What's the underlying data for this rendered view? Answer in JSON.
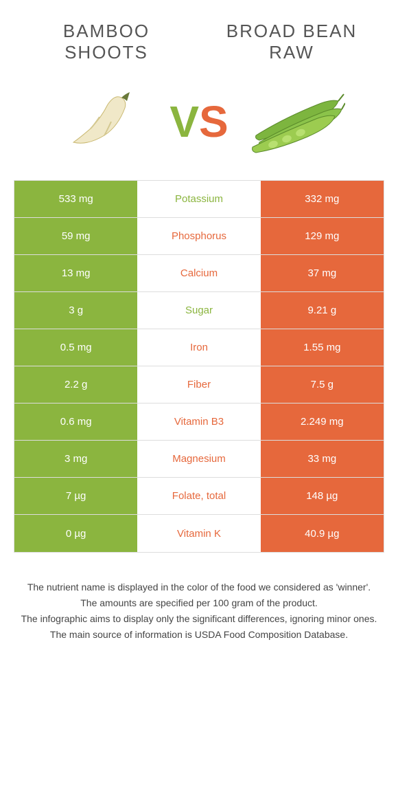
{
  "colors": {
    "green": "#8bb53f",
    "orange": "#e6683c",
    "text": "#555",
    "footer_text": "#444",
    "border": "#ddd",
    "white": "#ffffff"
  },
  "food_left": {
    "name": "BAMBOO SHOOTS",
    "image_alt": "bamboo-shoot"
  },
  "food_right": {
    "name": "BROAD BEAN RAW",
    "image_alt": "broad-beans"
  },
  "vs": {
    "v": "V",
    "s": "S"
  },
  "rows": [
    {
      "nutrient": "Potassium",
      "left": "533 mg",
      "right": "332 mg",
      "winner": "left"
    },
    {
      "nutrient": "Phosphorus",
      "left": "59 mg",
      "right": "129 mg",
      "winner": "right"
    },
    {
      "nutrient": "Calcium",
      "left": "13 mg",
      "right": "37 mg",
      "winner": "right"
    },
    {
      "nutrient": "Sugar",
      "left": "3 g",
      "right": "9.21 g",
      "winner": "left"
    },
    {
      "nutrient": "Iron",
      "left": "0.5 mg",
      "right": "1.55 mg",
      "winner": "right"
    },
    {
      "nutrient": "Fiber",
      "left": "2.2 g",
      "right": "7.5 g",
      "winner": "right"
    },
    {
      "nutrient": "Vitamin B3",
      "left": "0.6 mg",
      "right": "2.249 mg",
      "winner": "right"
    },
    {
      "nutrient": "Magnesium",
      "left": "3 mg",
      "right": "33 mg",
      "winner": "right"
    },
    {
      "nutrient": "Folate, total",
      "left": "7 µg",
      "right": "148 µg",
      "winner": "right"
    },
    {
      "nutrient": "Vitamin K",
      "left": "0 µg",
      "right": "40.9 µg",
      "winner": "right"
    }
  ],
  "footer": {
    "l1": "The nutrient name is displayed in the color of the food we considered as 'winner'.",
    "l2": "The amounts are specified per 100 gram of the product.",
    "l3": "The infographic aims to display only the significant differences, ignoring minor ones.",
    "l4": "The main source of information is USDA Food Composition Database."
  }
}
